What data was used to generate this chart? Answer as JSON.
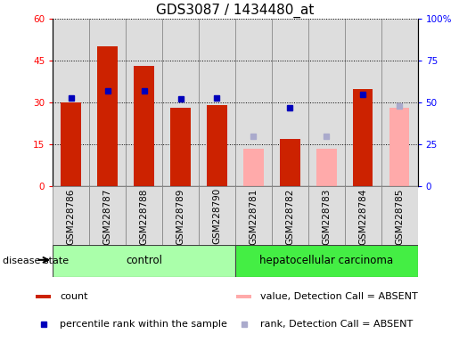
{
  "title": "GDS3087 / 1434480_at",
  "samples": [
    "GSM228786",
    "GSM228787",
    "GSM228788",
    "GSM228789",
    "GSM228790",
    "GSM228781",
    "GSM228782",
    "GSM228783",
    "GSM228784",
    "GSM228785"
  ],
  "count_present": [
    30,
    50,
    43,
    28,
    29,
    null,
    17,
    null,
    35,
    null
  ],
  "count_absent": [
    null,
    null,
    null,
    null,
    null,
    13.5,
    null,
    13.5,
    null,
    28
  ],
  "rank_present": [
    53,
    57,
    57,
    52,
    53,
    null,
    47,
    null,
    55,
    null
  ],
  "rank_absent": [
    null,
    null,
    null,
    null,
    null,
    30,
    null,
    30,
    null,
    48
  ],
  "bar_color_present": "#cc2200",
  "bar_color_absent": "#ffaaaa",
  "rank_color_present": "#0000bb",
  "rank_color_absent": "#aaaacc",
  "ylim_left": [
    0,
    60
  ],
  "ylim_right": [
    0,
    100
  ],
  "yticks_left": [
    0,
    15,
    30,
    45,
    60
  ],
  "yticks_right": [
    0,
    25,
    50,
    75,
    100
  ],
  "yticklabels_right": [
    "0",
    "25",
    "50",
    "75",
    "100%"
  ],
  "control_color": "#aaffaa",
  "hcc_color": "#44ee44",
  "cell_bg_color": "#dddddd",
  "title_fontsize": 11,
  "axis_fontsize": 7.5,
  "legend_fontsize": 8,
  "group_fontsize": 8.5,
  "bar_width": 0.55,
  "n_control": 5,
  "n_hcc": 5
}
